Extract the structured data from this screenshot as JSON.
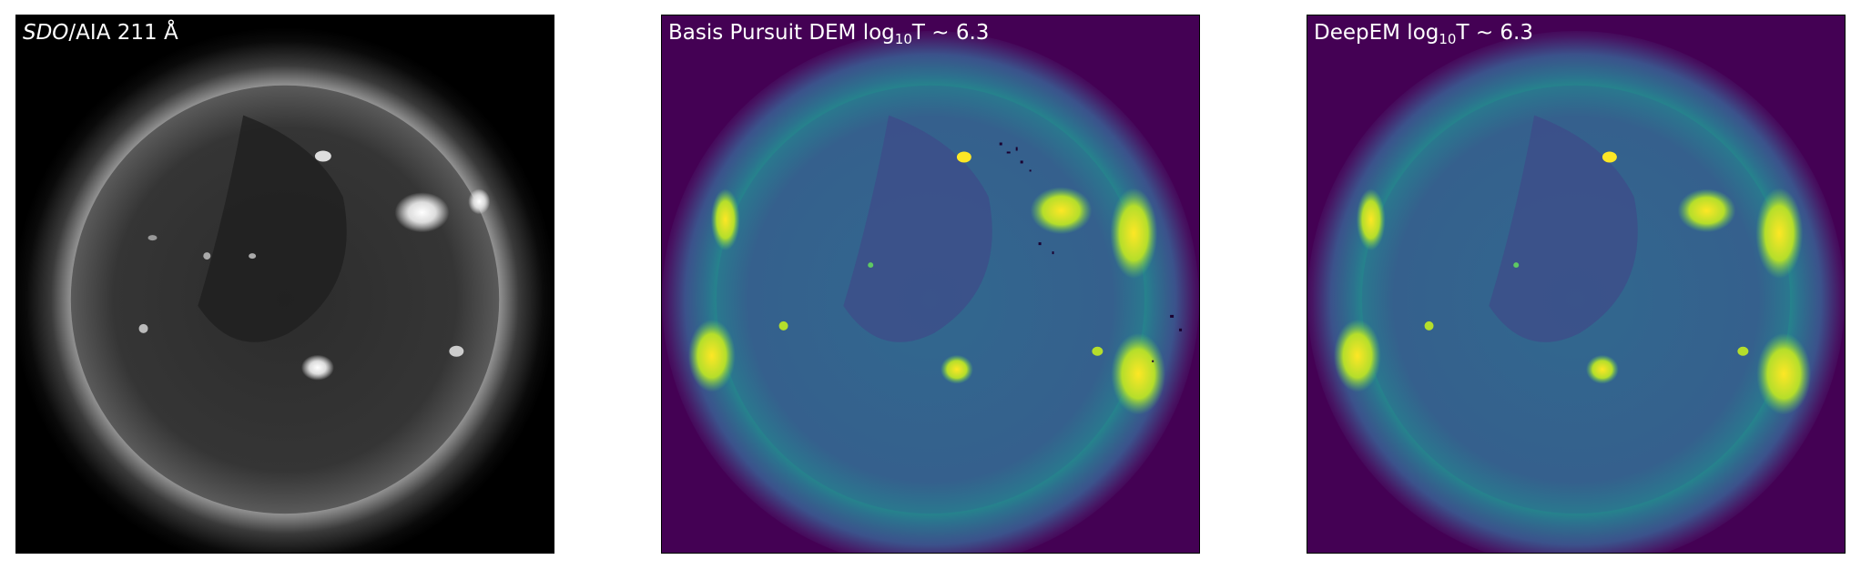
{
  "panels": [
    {
      "id": "aia",
      "title_italic": "SDO",
      "title_rest": "/AIA 211 Å",
      "colormap": "gray"
    },
    {
      "id": "bp",
      "title_pre": "Basis Pursuit DEM log",
      "title_sub": "10",
      "title_post": "T ~ 6.3",
      "colormap": "viridis"
    },
    {
      "id": "deepem",
      "title_pre": "DeepEM log",
      "title_sub": "10",
      "title_post": "T ~ 6.3",
      "colormap": "viridis"
    }
  ],
  "colors": {
    "gray_background": "#000000",
    "gray_disk": "#3a3a3a",
    "gray_bright": "#ffffff",
    "viridis_low": "#440154",
    "viridis_mid": "#3b528b",
    "viridis_teal": "#21918c",
    "viridis_green": "#5ec962",
    "viridis_high": "#fde725"
  }
}
